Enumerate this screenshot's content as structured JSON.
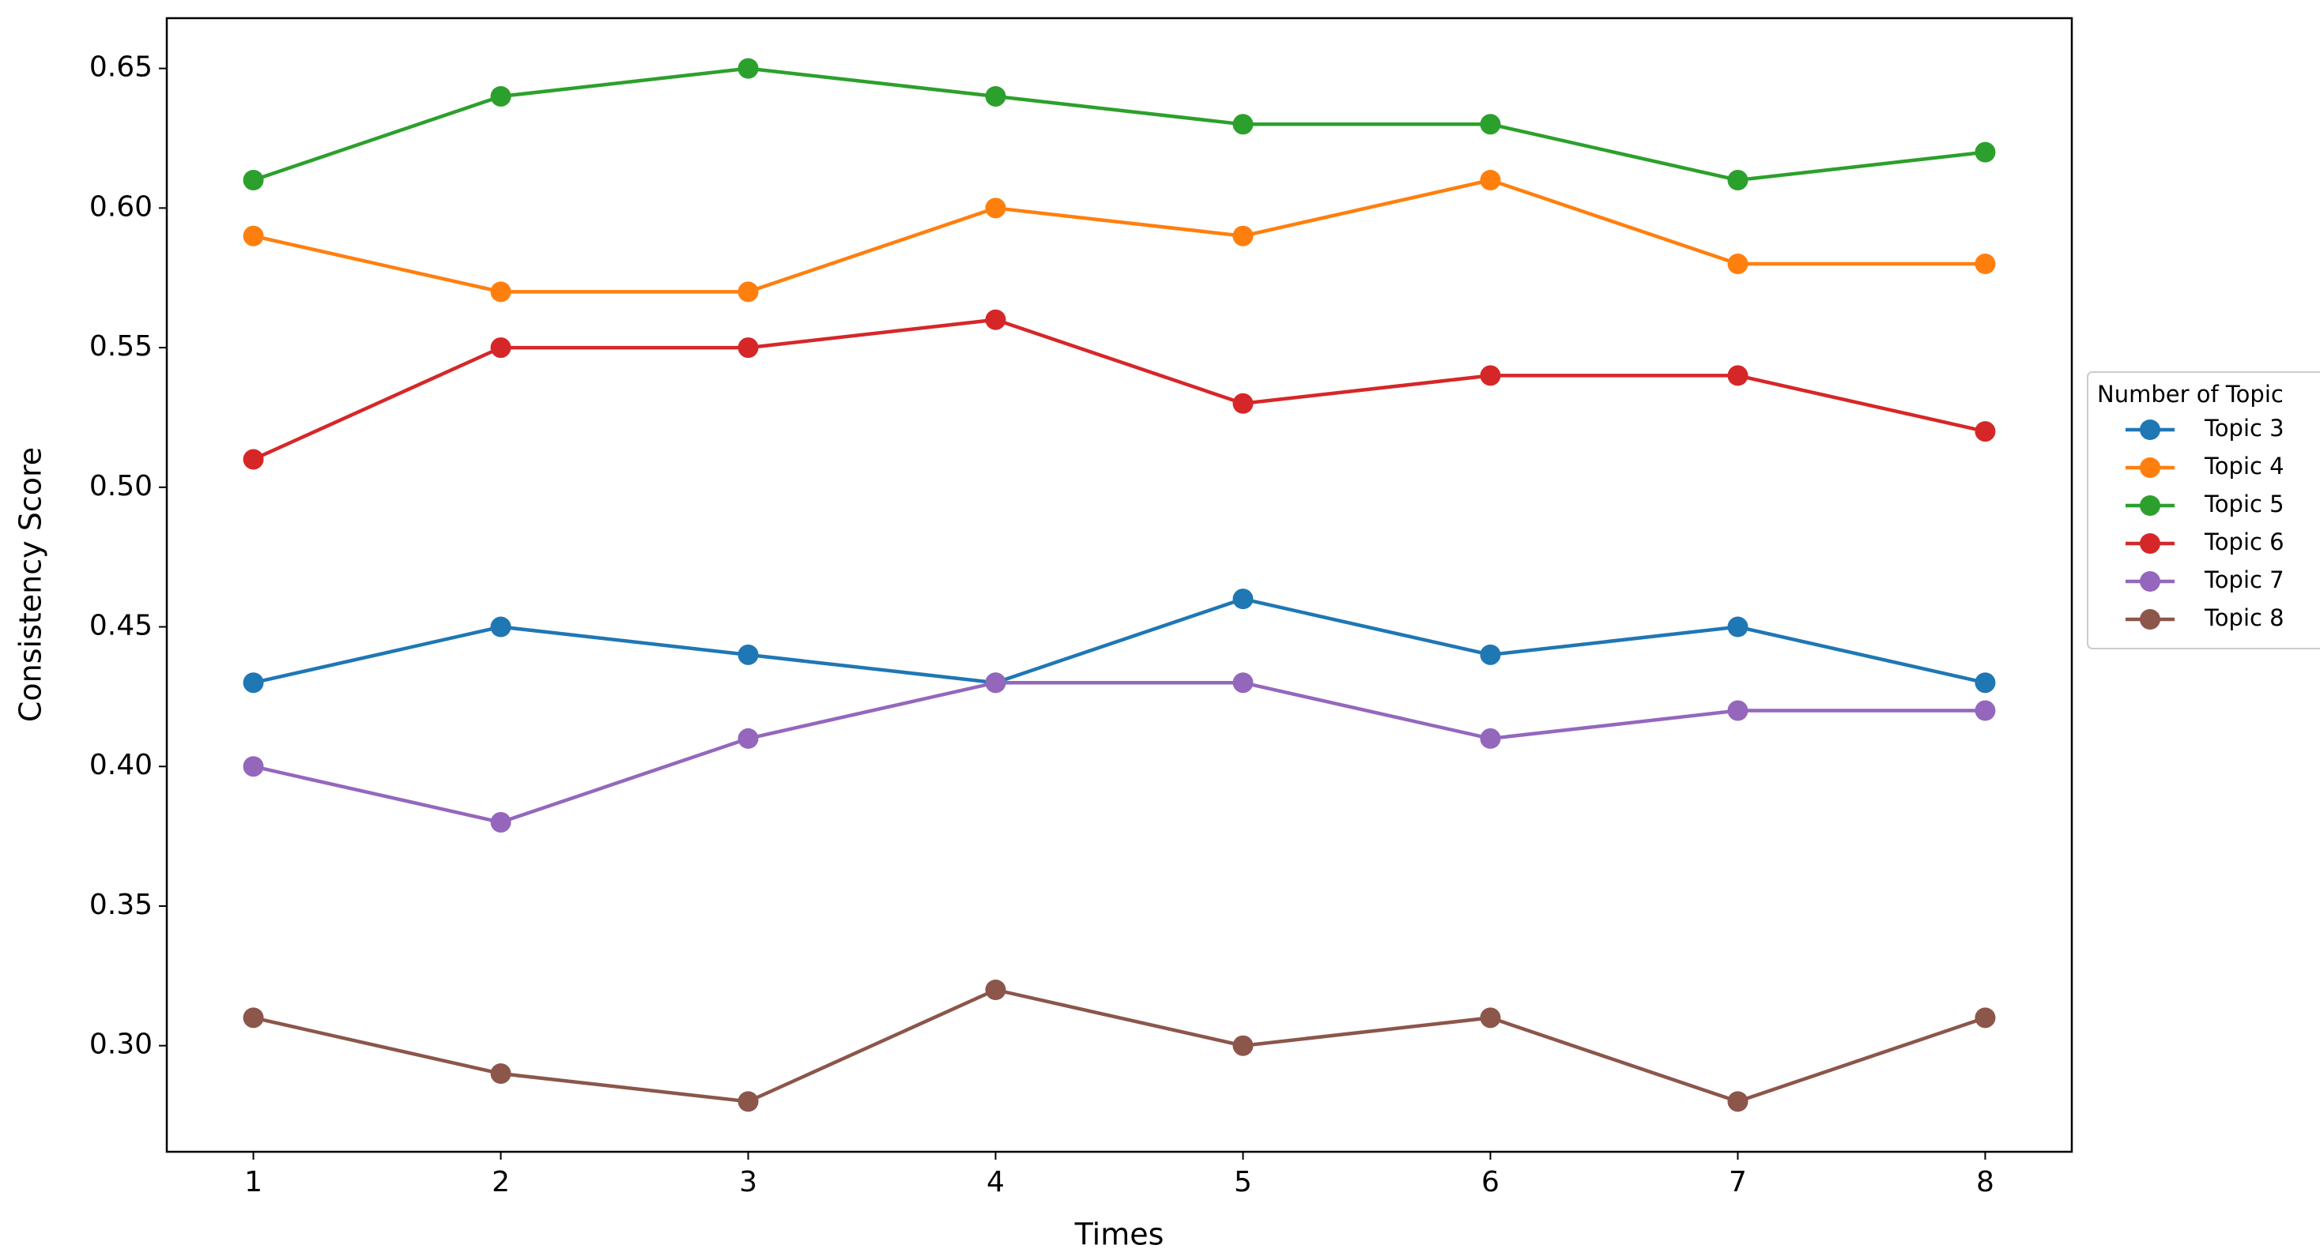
{
  "chart_data": {
    "type": "line",
    "x_label": "Times",
    "y_label": "Consistency Score",
    "x": [
      1,
      2,
      3,
      4,
      5,
      6,
      7,
      8
    ],
    "xlim": [
      0.65,
      8.35
    ],
    "xticks": [
      1,
      2,
      3,
      4,
      5,
      6,
      7,
      8
    ],
    "ylim": [
      0.262,
      0.668
    ],
    "yticks": [
      {
        "value": 0.3,
        "label": "0.30"
      },
      0.35,
      {
        "value": 0.4,
        "label": "0.40"
      },
      0.45,
      {
        "value": 0.5,
        "label": "0.50"
      },
      0.55,
      {
        "value": 0.6,
        "label": "0.60"
      },
      0.65
    ],
    "grid": false,
    "legend": "right",
    "legend_title": "Number of Topic",
    "series": [
      {
        "name": "Topic 3",
        "color": "#1f77b4",
        "values": [
          0.43,
          0.45,
          0.44,
          0.43,
          0.46,
          0.44,
          0.45,
          0.43
        ]
      },
      {
        "name": "Topic 4",
        "color": "#ff7f0e",
        "values": [
          0.59,
          0.57,
          0.57,
          0.6,
          0.59,
          0.61,
          0.58,
          0.58
        ]
      },
      {
        "name": "Topic 5",
        "color": "#2ca02c",
        "values": [
          0.61,
          0.64,
          0.65,
          0.64,
          0.63,
          0.63,
          0.61,
          0.62
        ]
      },
      {
        "name": "Topic 6",
        "color": "#d62728",
        "values": [
          0.51,
          0.55,
          0.55,
          0.56,
          0.53,
          0.54,
          0.54,
          0.52
        ]
      },
      {
        "name": "Topic 7",
        "color": "#9467bd",
        "values": [
          0.4,
          0.38,
          0.41,
          0.43,
          0.43,
          0.41,
          0.42,
          0.42
        ]
      },
      {
        "name": "Topic 8",
        "color": "#8c564b",
        "values": [
          0.31,
          0.29,
          0.28,
          0.32,
          0.3,
          0.31,
          0.28,
          0.31
        ]
      }
    ]
  }
}
